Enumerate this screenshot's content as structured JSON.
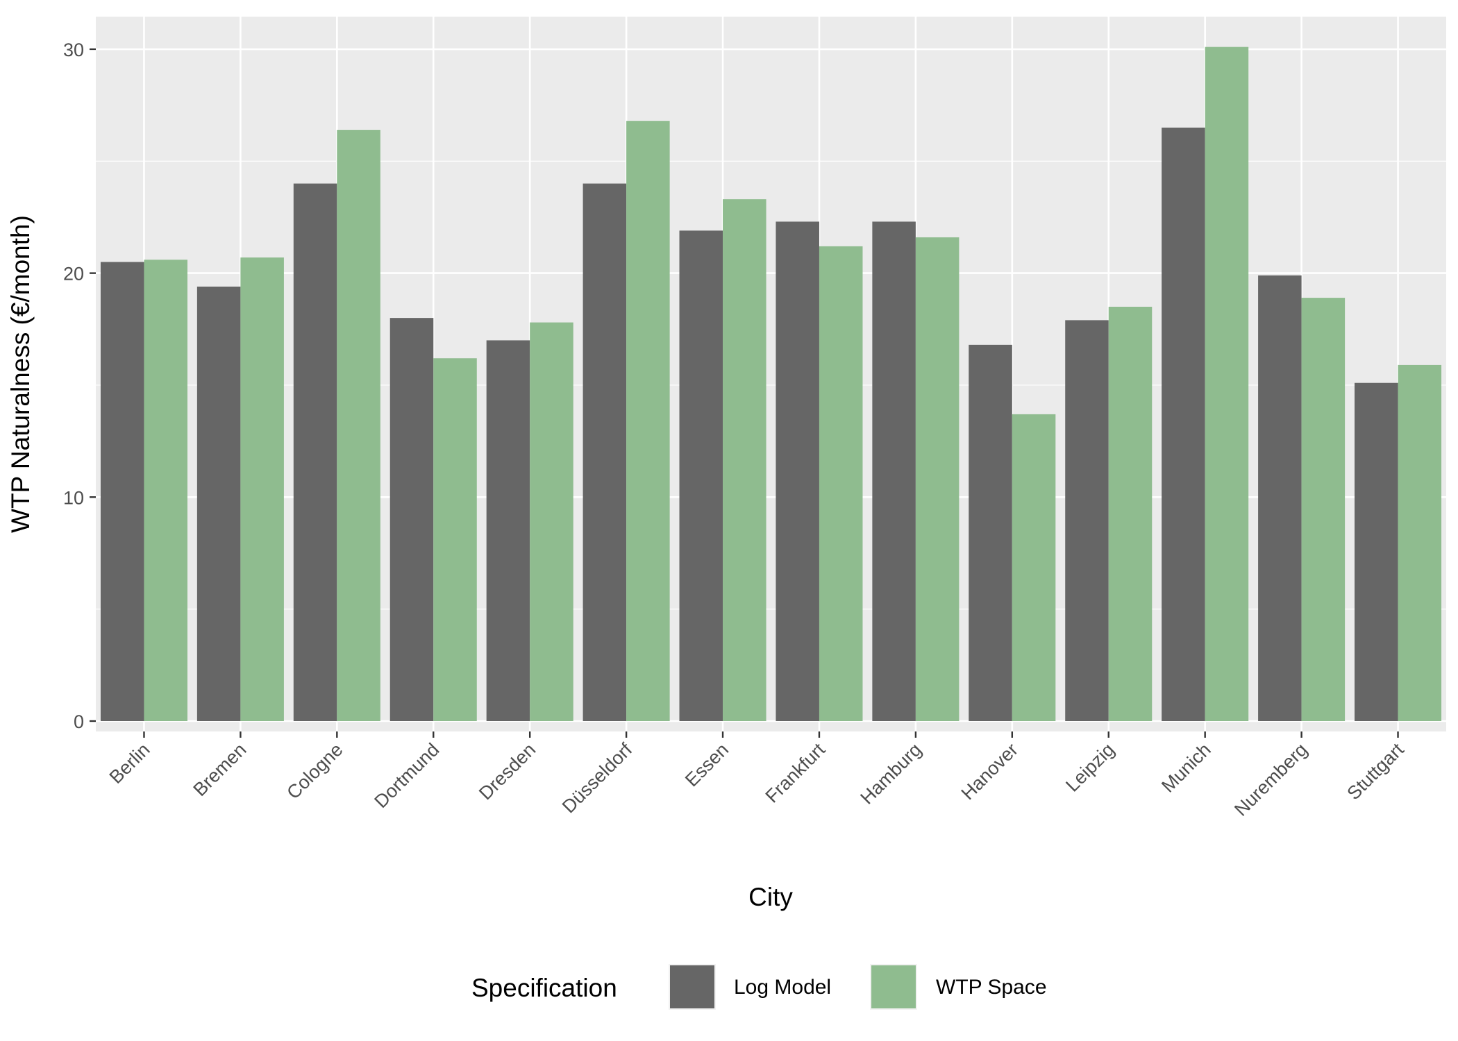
{
  "chart_data": {
    "type": "bar",
    "title": "",
    "xlabel": "City",
    "ylabel": "WTP Naturalness (€/month)",
    "ylim": [
      -1.5,
      31.5
    ],
    "y_ticks": [
      0,
      10,
      20,
      30
    ],
    "y_tick_labels": [
      "0",
      "10",
      "20",
      "30"
    ],
    "grid": true,
    "legend": {
      "title": "Specification",
      "position": "bottom"
    },
    "categories": [
      "Berlin",
      "Bremen",
      "Cologne",
      "Dortmund",
      "Dresden",
      "Düsseldorf",
      "Essen",
      "Frankfurt",
      "Hamburg",
      "Hanover",
      "Leipzig",
      "Munich",
      "Nuremberg",
      "Stuttgart"
    ],
    "series": [
      {
        "name": "Log Model",
        "color": "#666666",
        "values": [
          20.5,
          19.4,
          24.0,
          18.0,
          17.0,
          24.0,
          21.9,
          22.3,
          22.3,
          16.8,
          17.9,
          26.5,
          19.9,
          15.1
        ]
      },
      {
        "name": "WTP Space",
        "color": "#8fbc8f",
        "values": [
          20.6,
          20.7,
          26.4,
          16.2,
          17.8,
          26.8,
          23.3,
          21.2,
          21.6,
          13.7,
          18.5,
          30.1,
          18.9,
          15.9
        ]
      }
    ],
    "panel_background": "#ebebeb",
    "grid_color": "#ffffff"
  }
}
